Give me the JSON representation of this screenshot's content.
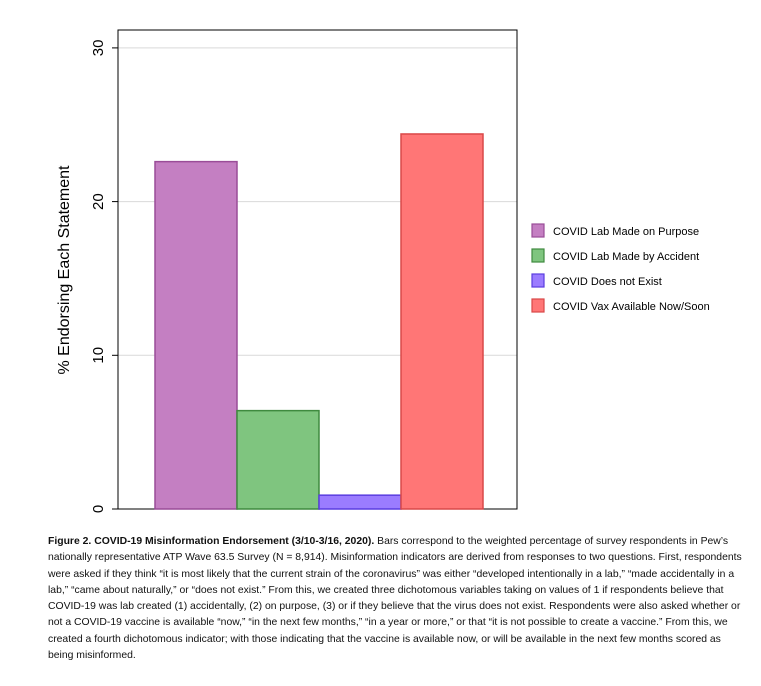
{
  "chart_data": {
    "type": "bar",
    "categories": [
      "COVID Lab Made on Purpose",
      "COVID Lab Made by Accident",
      "COVID Does not Exist",
      "COVID Vax Available Now/Soon"
    ],
    "values": [
      22.6,
      6.4,
      0.9,
      24.4
    ],
    "colors": [
      "#c47fc2",
      "#7fc57f",
      "#9b7cff",
      "#ff7676"
    ],
    "edge_colors": [
      "#9a4d98",
      "#3f8a3f",
      "#5a3de0",
      "#d94848"
    ],
    "ylabel": "% Endorsing Each Statement",
    "xlabel": "",
    "ylim": [
      0,
      31
    ],
    "yticks": [
      0,
      10,
      20,
      30
    ],
    "grid": true,
    "legend_position": "right"
  },
  "caption": {
    "title": "Figure 2. COVID-19 Misinformation Endorsement (3/10-3/16, 2020).",
    "body": " Bars correspond to the weighted percentage of survey respondents in Pew’s nationally representative ATP Wave 63.5 Survey (N = 8,914).  Misinformation indicators are derived from responses to two questions. First, respondents were asked if they think “it is most likely that the current strain of the coronavirus” was either “developed intentionally in a lab,” “made accidentally in a lab,” “came about naturally,” or “does not exist.” From this, we created three dichotomous variables taking on values of 1 if respondents believe that COVID-19 was lab created (1) accidentally, (2) on purpose, (3) or if they believe that the virus does not exist. Respondents were also asked whether or not a COVID-19 vaccine is available “now,” “in the next few months,” “in a year or more,” or that “it is not possible to create a vaccine.” From this, we created a fourth dichotomous indicator; with those indicating that the vaccine is available now, or will be available in the next few months scored as being misinformed."
  }
}
